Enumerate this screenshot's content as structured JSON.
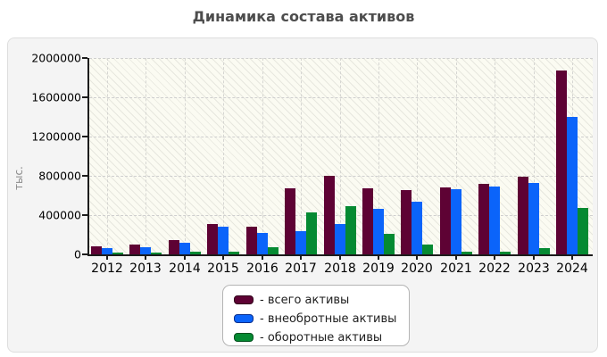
{
  "title": "Динамика состава активов",
  "chart_data": {
    "type": "bar",
    "title": "Динамика состава активов",
    "xlabel": "",
    "ylabel": "тыс.",
    "ylim": [
      0,
      2000000
    ],
    "y_ticks": [
      0,
      400000,
      800000,
      1200000,
      1600000,
      2000000
    ],
    "grid": true,
    "legend_position": "bottom-center",
    "categories": [
      "2012",
      "2013",
      "2014",
      "2015",
      "2016",
      "2017",
      "2018",
      "2019",
      "2020",
      "2021",
      "2022",
      "2023",
      "2024"
    ],
    "series": [
      {
        "name": "- всего активы",
        "color": "#5e0234",
        "border_color": "#30001a",
        "values": [
          80000,
          100000,
          145000,
          310000,
          285000,
          670000,
          800000,
          675000,
          650000,
          680000,
          720000,
          795000,
          1870000
        ]
      },
      {
        "name": "- внеобротные активы",
        "color": "#0b64fa",
        "border_color": "#0a2e8c",
        "values": [
          65000,
          75000,
          115000,
          285000,
          220000,
          240000,
          310000,
          465000,
          540000,
          660000,
          690000,
          730000,
          1400000
        ]
      },
      {
        "name": "- оборотные активы",
        "color": "#058a32",
        "border_color": "#03501e",
        "values": [
          15000,
          22000,
          30000,
          30000,
          70000,
          430000,
          490000,
          210000,
          100000,
          25000,
          25000,
          65000,
          475000
        ]
      }
    ]
  }
}
